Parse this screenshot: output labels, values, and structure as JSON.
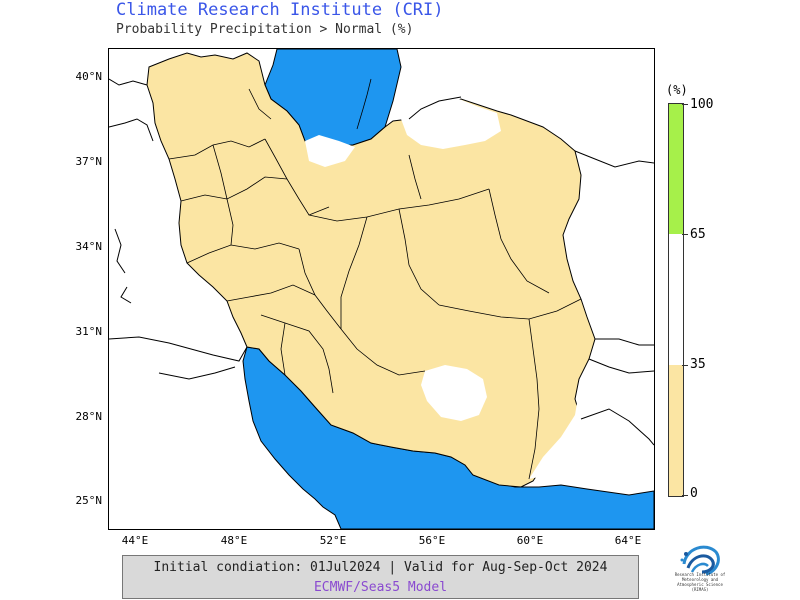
{
  "header": {
    "title": "Climate Research Institute (CRI)",
    "subtitle": "Probability Precipitation > Normal (%)"
  },
  "map": {
    "lat_labels": [
      "40°N",
      "37°N",
      "34°N",
      "31°N",
      "28°N",
      "25°N"
    ],
    "lon_labels": [
      "44°E",
      "48°E",
      "52°E",
      "56°E",
      "60°E",
      "64°E"
    ],
    "colors": {
      "land_category": "#fbe5a3",
      "water": "#1e96f0",
      "outside": "#ffffff",
      "border": "#000000"
    },
    "dominant_category": "0-35"
  },
  "legend": {
    "unit": "(%)",
    "ticks": [
      "100",
      "65",
      "35",
      "0"
    ],
    "categories": [
      {
        "range": "65-100",
        "color": "#a6f04a"
      },
      {
        "range": "35-65",
        "color": "#ffffff"
      },
      {
        "range": "0-35",
        "color": "#fbe5a3"
      }
    ]
  },
  "footer": {
    "line1": "Initial condiation: 01Jul2024 | Valid for Aug-Sep-Oct 2024",
    "line2": "ECMWF/Seas5 Model"
  },
  "logo": {
    "text": "Research Institute of Meteorology and Atmospheric Science (RIMAS)"
  }
}
